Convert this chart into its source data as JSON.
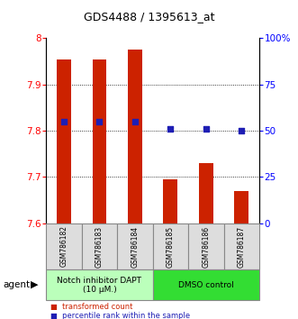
{
  "title": "GDS4488 / 1395613_at",
  "samples": [
    "GSM786182",
    "GSM786183",
    "GSM786184",
    "GSM786185",
    "GSM786186",
    "GSM786187"
  ],
  "bar_values": [
    7.955,
    7.955,
    7.975,
    7.695,
    7.73,
    7.67
  ],
  "bar_bottom": 7.6,
  "percentile_values": [
    55,
    55,
    55,
    51,
    51,
    50
  ],
  "ylim_left": [
    7.6,
    8.0
  ],
  "ylim_right": [
    0,
    100
  ],
  "yticks_left": [
    7.6,
    7.7,
    7.8,
    7.9,
    8.0
  ],
  "ytick_labels_left": [
    "7.6",
    "7.7",
    "7.8",
    "7.9",
    "8"
  ],
  "yticks_right": [
    0,
    25,
    50,
    75,
    100
  ],
  "ytick_labels_right": [
    "0",
    "25",
    "50",
    "75",
    "100%"
  ],
  "bar_color": "#cc2200",
  "dot_color": "#1e1eb4",
  "groups": [
    {
      "label": "Notch inhibitor DAPT\n(10 μM.)",
      "color": "#bbffbb",
      "samples": [
        0,
        1,
        2
      ]
    },
    {
      "label": "DMSO control",
      "color": "#33dd33",
      "samples": [
        3,
        4,
        5
      ]
    }
  ],
  "agent_label": "agent",
  "legend_items": [
    {
      "color": "#cc2200",
      "label": "transformed count"
    },
    {
      "color": "#1e1eb4",
      "label": "percentile rank within the sample"
    }
  ],
  "grid_yticks": [
    7.7,
    7.8,
    7.9
  ],
  "bar_width": 0.4
}
